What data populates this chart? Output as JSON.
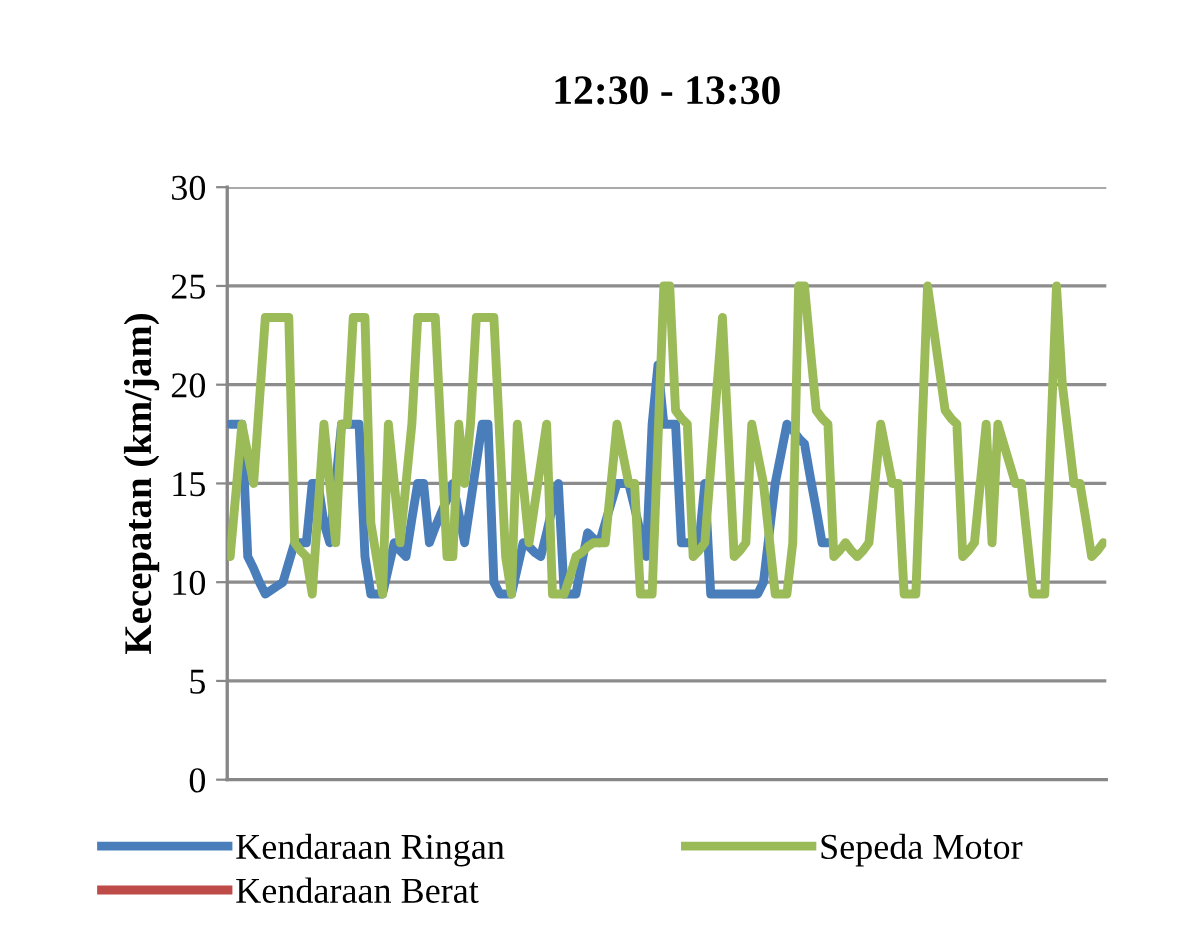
{
  "chart_data": {
    "type": "line",
    "title": "12:30 - 13:30",
    "ylabel": "Kecepatan (km/jam)",
    "categories": [
      null,
      null,
      null,
      null,
      null,
      null,
      null,
      null,
      null,
      null,
      null,
      null,
      null,
      null,
      null,
      null,
      null,
      null,
      null,
      null,
      null,
      null,
      null,
      null,
      null,
      null,
      null,
      null,
      null,
      null,
      null,
      null,
      null,
      null,
      null,
      null,
      null,
      null,
      null,
      null,
      null,
      null,
      null,
      null,
      null,
      null,
      null,
      null,
      null,
      null,
      null,
      null,
      null,
      null,
      null,
      null,
      null,
      null,
      null,
      null,
      null,
      null,
      null,
      null,
      null,
      null,
      null,
      null,
      null,
      null,
      null,
      null,
      null,
      null,
      null,
      null,
      null,
      null,
      null,
      null,
      null,
      null,
      null,
      null,
      null,
      null,
      null,
      null,
      null,
      null,
      null,
      null,
      null,
      null,
      null,
      null,
      null,
      null,
      null,
      null,
      null,
      null,
      null,
      null,
      null,
      null,
      null,
      null,
      null,
      null,
      null,
      null,
      null,
      null,
      null,
      null,
      null,
      null,
      null,
      null,
      null,
      null,
      null,
      null,
      null,
      null,
      null,
      null,
      null,
      null,
      null,
      null,
      null,
      null,
      null,
      null,
      null,
      null,
      null,
      null,
      null,
      null,
      null,
      null,
      null,
      null,
      null,
      null,
      null,
      null
    ],
    "series": [
      {
        "name": "Kendaraan Ringan",
        "color": "#4a7ebb",
        "values": [
          18,
          18,
          18,
          11.3,
          10.7,
          10,
          9.4,
          9.6,
          9.8,
          10,
          11,
          12,
          12,
          12,
          15,
          15,
          13,
          12,
          15,
          18,
          18,
          18,
          18,
          11.3,
          9.4,
          9.4,
          9.4,
          10.7,
          12,
          11.6,
          11.3,
          13.2,
          15,
          15,
          12,
          12.8,
          13.5,
          14.2,
          15,
          13.5,
          12,
          14,
          16,
          18,
          18,
          10,
          9.4,
          9.4,
          9.4,
          10.7,
          12,
          11.8,
          11.5,
          11.3,
          12.5,
          13.8,
          15,
          9.4,
          9.4,
          9.4,
          11,
          12.5,
          12.2,
          12,
          13,
          14,
          15,
          15,
          15,
          13.8,
          12.5,
          11.3,
          18,
          21,
          18,
          18,
          18,
          12,
          12,
          12,
          12,
          15,
          9.4,
          9.4,
          9.4,
          9.4,
          9.4,
          9.4,
          9.4,
          9.4,
          9.4,
          10,
          12.5,
          15,
          16.5,
          18,
          17.7,
          17.3,
          17,
          15.3,
          13.7,
          12,
          12,
          null,
          null,
          null,
          null,
          null,
          null,
          null,
          null,
          null,
          null,
          null,
          null,
          null,
          null,
          null,
          null,
          null,
          null,
          null,
          null,
          null,
          null,
          null,
          null,
          null,
          null,
          null,
          null,
          null,
          null,
          null,
          null,
          null,
          null,
          null,
          null,
          null,
          null,
          null,
          null,
          null,
          null,
          null,
          null,
          null,
          null,
          null
        ]
      },
      {
        "name": "Kendaraan Berat",
        "color": "#be4b48",
        "values": [
          null,
          null,
          null,
          null,
          null,
          null,
          null,
          null,
          null,
          null,
          null,
          null,
          null,
          null,
          null,
          null,
          null,
          null,
          null,
          null,
          null,
          null,
          null,
          null,
          null,
          null,
          null,
          null,
          null,
          null,
          null,
          null,
          null,
          null,
          null,
          null,
          null,
          null,
          null,
          null,
          null,
          null,
          null,
          null,
          null,
          null,
          null,
          null,
          null,
          null,
          null,
          null,
          null,
          null,
          null,
          null,
          null,
          null,
          null,
          null,
          null,
          null,
          null,
          null,
          null,
          null,
          null,
          null,
          null,
          null,
          null,
          null,
          null,
          null,
          null,
          null,
          null,
          null,
          null,
          null,
          null,
          null,
          null,
          null,
          null,
          null,
          null,
          null,
          null,
          null,
          null,
          null,
          null,
          null,
          null,
          null,
          null,
          null,
          null,
          null,
          null,
          null,
          null,
          null,
          null,
          null,
          null,
          null,
          null,
          null,
          null,
          null,
          null,
          null,
          null,
          null,
          null,
          null,
          null,
          null,
          null,
          null,
          null,
          null,
          null,
          null,
          null,
          null,
          null,
          null,
          null,
          null,
          null,
          null,
          null,
          null,
          null,
          null,
          null,
          null,
          null,
          null,
          null,
          null,
          null,
          null,
          null,
          null,
          null,
          null
        ]
      },
      {
        "name": "Sepeda Motor",
        "color": "#9bbb59",
        "values": [
          11.3,
          14.6,
          18,
          16.5,
          15,
          19.2,
          23.4,
          23.4,
          23.4,
          23.4,
          23.4,
          12,
          11.6,
          11.3,
          9.4,
          13.7,
          18,
          15,
          12,
          18,
          18,
          23.4,
          23.4,
          23.4,
          13,
          11.2,
          9.4,
          18,
          15,
          12,
          15,
          18,
          23.4,
          23.4,
          23.4,
          23.4,
          17.3,
          11.3,
          11.3,
          18,
          15,
          18,
          23.4,
          23.4,
          23.4,
          23.4,
          17.3,
          11.3,
          9.4,
          18,
          15,
          12,
          14,
          16,
          18,
          9.4,
          9.4,
          9.4,
          10.3,
          11.3,
          11.5,
          11.8,
          12,
          12,
          12,
          15,
          18,
          16.5,
          15,
          15,
          9.4,
          9.4,
          9.4,
          17.2,
          25,
          25,
          18.7,
          18.3,
          18,
          11.3,
          11.6,
          12,
          15.8,
          19.6,
          23.4,
          17.3,
          11.3,
          11.6,
          12,
          18,
          16.5,
          15,
          12.2,
          9.4,
          9.4,
          9.4,
          12,
          25,
          25,
          21.8,
          18.7,
          18.3,
          18,
          11.3,
          11.6,
          12,
          11.6,
          11.3,
          11.6,
          12,
          15,
          18,
          16.5,
          15,
          15,
          9.4,
          9.4,
          9.4,
          17.2,
          25,
          22.9,
          20.8,
          18.7,
          18.3,
          18,
          11.3,
          11.6,
          12,
          15,
          18,
          12,
          18,
          17,
          16,
          15,
          15,
          12.2,
          9.4,
          9.4,
          9.4,
          17.2,
          25,
          20,
          17.5,
          15,
          15,
          13.2,
          11.3,
          11.6,
          12
        ]
      }
    ],
    "ylim": [
      0,
      30
    ],
    "yticks": [
      0,
      5,
      10,
      15,
      20,
      25,
      30
    ],
    "grid": "y",
    "legend": "bottom",
    "marker": "none",
    "line_style": "solid"
  }
}
